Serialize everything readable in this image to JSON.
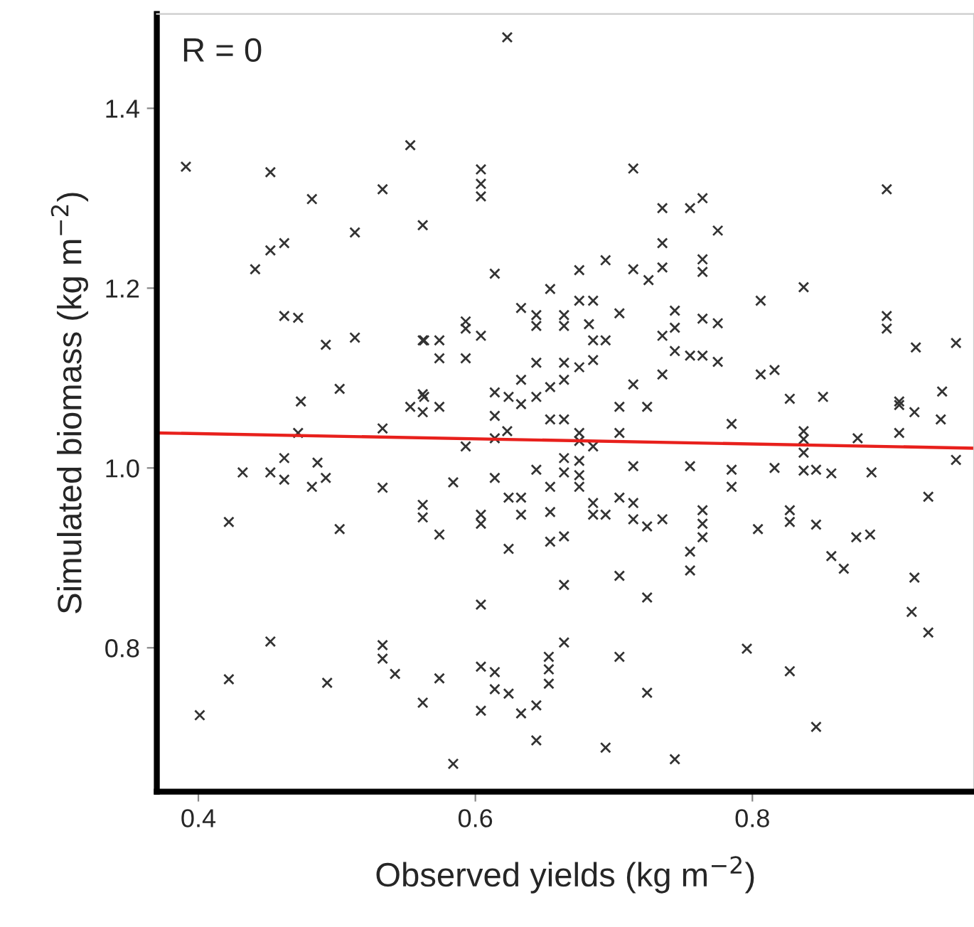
{
  "chart_data": {
    "type": "scatter",
    "xlabel": "Observed yields (kg m$^{−2}$)",
    "ylabel": "Simulated biomass (kg m$^{−2}$)",
    "annotations": [
      "R = 0"
    ],
    "xlim": [
      0.37,
      0.96
    ],
    "ylim": [
      0.64,
      1.505
    ],
    "xticks": [
      0.4,
      0.6,
      0.8
    ],
    "yticks": [
      0.8,
      {
        "value": 1.0,
        "label": "1.0"
      },
      1.2,
      1.4
    ],
    "grid": false,
    "legend": false,
    "series": [
      {
        "marker": "cross",
        "color": "#333333",
        "x": [
          0.391,
          0.553,
          0.452,
          0.533,
          0.482,
          0.562,
          0.513,
          0.462,
          0.452,
          0.441,
          0.462,
          0.472,
          0.562,
          0.513,
          0.492,
          0.502,
          0.474,
          0.562,
          0.623,
          0.604,
          0.604,
          0.604,
          0.714,
          0.735,
          0.755,
          0.764,
          0.735,
          0.694,
          0.714,
          0.735,
          0.725,
          0.764,
          0.764,
          0.614,
          0.675,
          0.654,
          0.633,
          0.644,
          0.644,
          0.664,
          0.664,
          0.675,
          0.685,
          0.704,
          0.682,
          0.685,
          0.694,
          0.744,
          0.744,
          0.735,
          0.764,
          0.593,
          0.593,
          0.604,
          0.563,
          0.574,
          0.574,
          0.593,
          0.644,
          0.664,
          0.675,
          0.685,
          0.744,
          0.755,
          0.764,
          0.633,
          0.664,
          0.654,
          0.714,
          0.735,
          0.614,
          0.624,
          0.644,
          0.563,
          0.897,
          0.775,
          0.837,
          0.806,
          0.775,
          0.775,
          0.897,
          0.897,
          0.918,
          0.947,
          0.806,
          0.816,
          0.937,
          0.827,
          0.851,
          0.906,
          0.472,
          0.533,
          0.553,
          0.562,
          0.462,
          0.486,
          0.432,
          0.452,
          0.462,
          0.482,
          0.492,
          0.533,
          0.562,
          0.562,
          0.422,
          0.502,
          0.452,
          0.533,
          0.533,
          0.542,
          0.422,
          0.493,
          0.562,
          0.401,
          0.574,
          0.614,
          0.633,
          0.654,
          0.664,
          0.704,
          0.724,
          0.623,
          0.614,
          0.593,
          0.675,
          0.675,
          0.685,
          0.704,
          0.644,
          0.664,
          0.675,
          0.664,
          0.675,
          0.675,
          0.714,
          0.755,
          0.584,
          0.614,
          0.654,
          0.624,
          0.633,
          0.704,
          0.685,
          0.714,
          0.604,
          0.604,
          0.633,
          0.654,
          0.685,
          0.694,
          0.714,
          0.724,
          0.735,
          0.764,
          0.764,
          0.764,
          0.574,
          0.624,
          0.654,
          0.664,
          0.755,
          0.755,
          0.704,
          0.664,
          0.724,
          0.604,
          0.664,
          0.704,
          0.653,
          0.653,
          0.653,
          0.604,
          0.614,
          0.614,
          0.624,
          0.574,
          0.724,
          0.604,
          0.633,
          0.644,
          0.644,
          0.694,
          0.744,
          0.584,
          0.906,
          0.917,
          0.936,
          0.785,
          0.837,
          0.837,
          0.837,
          0.876,
          0.906,
          0.947,
          0.785,
          0.785,
          0.816,
          0.837,
          0.846,
          0.857,
          0.886,
          0.927,
          0.804,
          0.827,
          0.827,
          0.846,
          0.875,
          0.885,
          0.857,
          0.866,
          0.917,
          0.915,
          0.927,
          0.796,
          0.827,
          0.846
        ],
        "values": [
          1.335,
          1.359,
          1.329,
          1.31,
          1.299,
          1.27,
          1.262,
          1.25,
          1.242,
          1.221,
          1.169,
          1.167,
          1.142,
          1.145,
          1.137,
          1.088,
          1.074,
          1.082,
          1.479,
          1.332,
          1.316,
          1.302,
          1.333,
          1.289,
          1.289,
          1.3,
          1.25,
          1.231,
          1.221,
          1.223,
          1.209,
          1.232,
          1.218,
          1.216,
          1.22,
          1.199,
          1.178,
          1.17,
          1.158,
          1.17,
          1.158,
          1.186,
          1.186,
          1.172,
          1.16,
          1.142,
          1.142,
          1.175,
          1.156,
          1.147,
          1.166,
          1.163,
          1.155,
          1.147,
          1.142,
          1.142,
          1.122,
          1.122,
          1.117,
          1.117,
          1.112,
          1.12,
          1.13,
          1.125,
          1.125,
          1.098,
          1.098,
          1.09,
          1.093,
          1.104,
          1.084,
          1.079,
          1.079,
          1.079,
          1.31,
          1.264,
          1.201,
          1.186,
          1.161,
          1.118,
          1.169,
          1.155,
          1.134,
          1.139,
          1.104,
          1.109,
          1.085,
          1.077,
          1.079,
          1.074,
          1.039,
          1.044,
          1.068,
          1.062,
          1.011,
          1.006,
          0.995,
          0.995,
          0.987,
          0.979,
          0.989,
          0.978,
          0.959,
          0.945,
          0.94,
          0.932,
          0.807,
          0.803,
          0.788,
          0.771,
          0.765,
          0.761,
          0.739,
          0.725,
          1.068,
          1.058,
          1.071,
          1.054,
          1.054,
          1.068,
          1.068,
          1.041,
          1.033,
          1.024,
          1.039,
          1.03,
          1.024,
          1.039,
          0.998,
          1.011,
          1.008,
          0.995,
          0.992,
          0.979,
          1.002,
          1.002,
          0.984,
          0.989,
          0.979,
          0.967,
          0.967,
          0.967,
          0.961,
          0.961,
          0.948,
          0.938,
          0.948,
          0.951,
          0.948,
          0.948,
          0.943,
          0.935,
          0.943,
          0.953,
          0.938,
          0.923,
          0.926,
          0.91,
          0.918,
          0.924,
          0.907,
          0.886,
          0.88,
          0.87,
          0.856,
          0.848,
          0.806,
          0.79,
          0.79,
          0.776,
          0.76,
          0.779,
          0.773,
          0.754,
          0.749,
          0.766,
          0.75,
          0.73,
          0.727,
          0.736,
          0.697,
          0.689,
          0.676,
          0.671,
          1.07,
          1.062,
          1.054,
          1.049,
          1.041,
          1.032,
          1.017,
          1.033,
          1.039,
          1.009,
          0.998,
          0.979,
          1.0,
          0.997,
          0.998,
          0.994,
          0.995,
          0.968,
          0.932,
          0.953,
          0.94,
          0.937,
          0.923,
          0.926,
          0.902,
          0.888,
          0.878,
          0.84,
          0.817,
          0.799,
          0.774,
          0.712
        ]
      },
      {
        "type": "line",
        "marker": "none",
        "color": "#e8201c",
        "x": [
          0.37,
          0.96
        ],
        "values": [
          1.039,
          1.022
        ]
      }
    ]
  }
}
